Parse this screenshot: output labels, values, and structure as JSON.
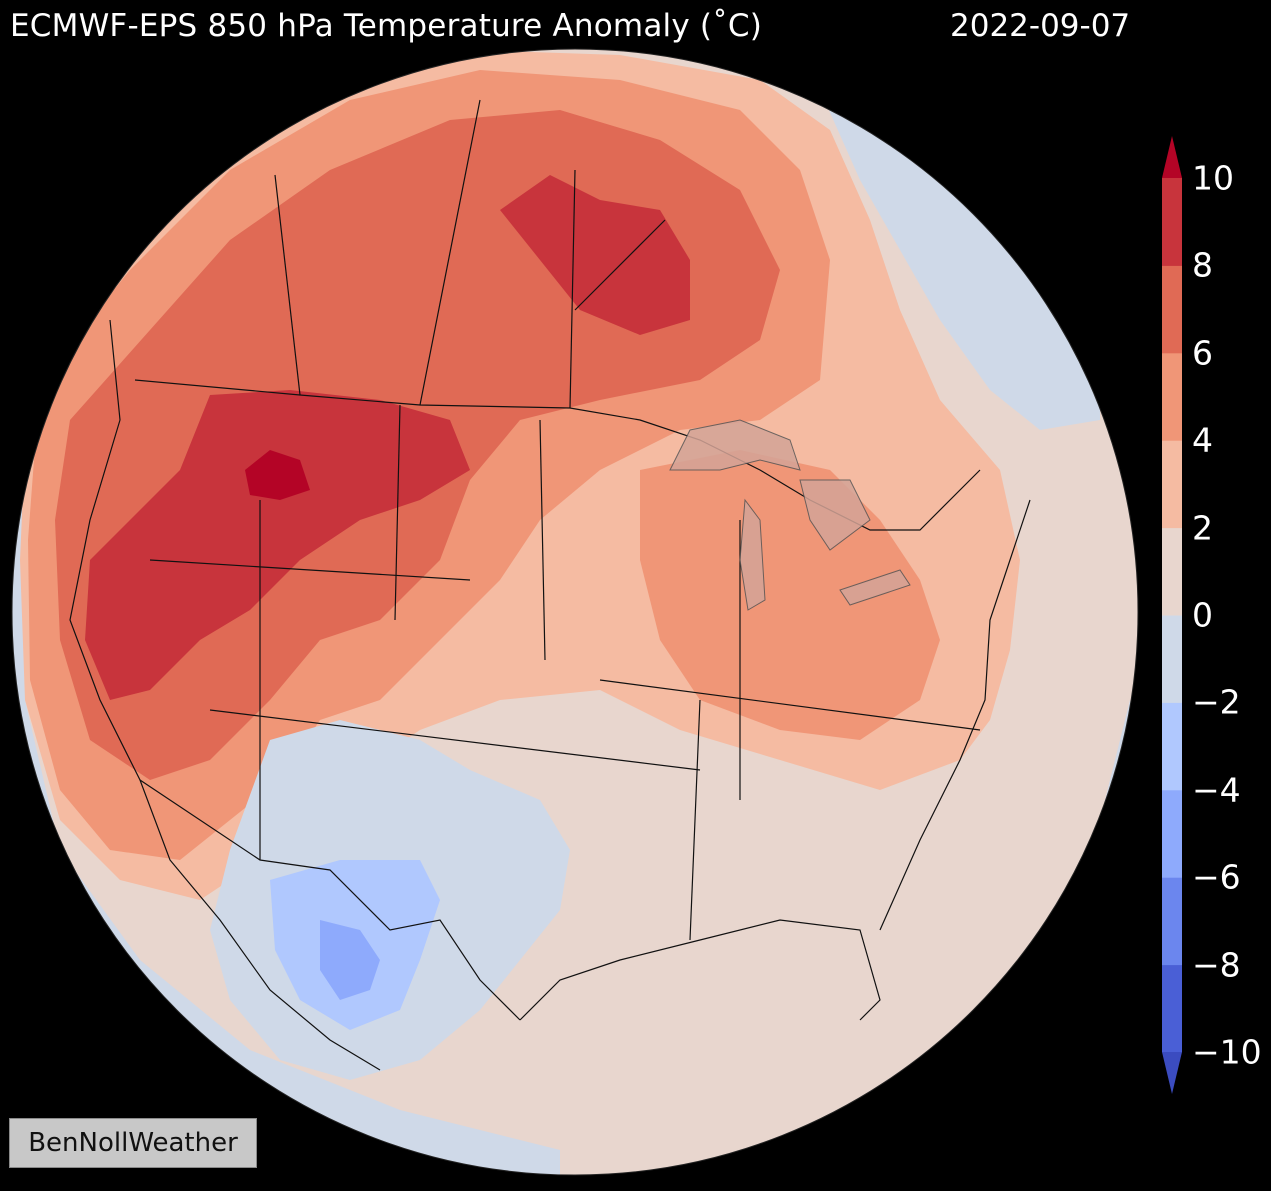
{
  "map": {
    "title": "ECMWF-EPS 850 hPa Temperature Anomaly (˚C)",
    "date": "2022-09-07",
    "watermark": "BenNollWeather",
    "projection": "orthographic",
    "region": "North America",
    "variable": "850 hPa temperature anomaly",
    "units": "˚C"
  },
  "colorbar": {
    "levels": [
      -10,
      -8,
      -6,
      -4,
      -2,
      0,
      2,
      4,
      6,
      8,
      10
    ],
    "labels": [
      "10",
      "8",
      "6",
      "4",
      "2",
      "0",
      "−2",
      "−4",
      "−6",
      "−8",
      "−10"
    ],
    "colors": [
      "#4a5fd6",
      "#6b86ee",
      "#8eaafc",
      "#b0c8fe",
      "#cfd9e8",
      "#e8d6ce",
      "#f5bba2",
      "#f09677",
      "#e06a55",
      "#c8343c"
    ],
    "extend_high_color": "#b40426",
    "extend_low_color": "#3b4cc0"
  }
}
